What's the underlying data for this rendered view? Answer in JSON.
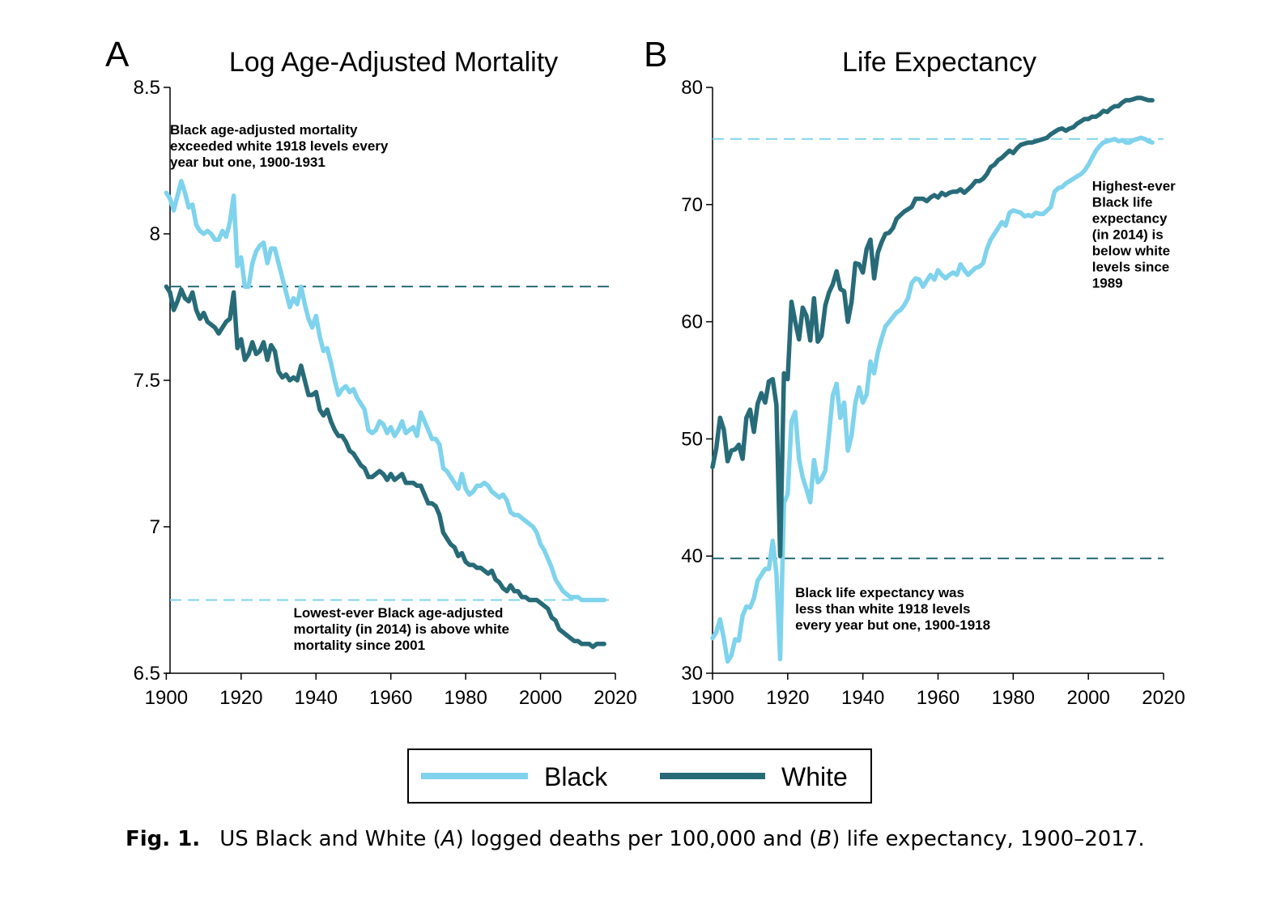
{
  "colors": {
    "black_series": "#7fd3ec",
    "white_series": "#276b78"
  },
  "legend": {
    "black_label": "Black",
    "white_label": "White"
  },
  "caption": {
    "label": "Fig. 1.",
    "text_parts": [
      "US Black and White (",
      "A",
      ") logged deaths per 100,000 and (",
      "B",
      ") life expectancy, 1900–2017."
    ]
  },
  "chart_data": [
    {
      "type": "line",
      "panel_letter": "A",
      "title": "Log Age-Adjusted Mortality",
      "xlim": [
        1900,
        2020
      ],
      "ylim": [
        6.5,
        8.5
      ],
      "xticks": [
        1900,
        1920,
        1940,
        1960,
        1980,
        2000,
        2020
      ],
      "yticks": [
        6.5,
        7,
        7.5,
        8,
        8.5
      ],
      "ytick_labels": [
        "6.5",
        "7",
        "7.5",
        "8",
        "8.5"
      ],
      "grid": false,
      "x": [
        1900,
        1901,
        1902,
        1903,
        1904,
        1905,
        1906,
        1907,
        1908,
        1909,
        1910,
        1911,
        1912,
        1913,
        1914,
        1915,
        1916,
        1917,
        1918,
        1919,
        1920,
        1921,
        1922,
        1923,
        1924,
        1925,
        1926,
        1927,
        1928,
        1929,
        1930,
        1931,
        1932,
        1933,
        1934,
        1935,
        1936,
        1937,
        1938,
        1939,
        1940,
        1941,
        1942,
        1943,
        1944,
        1945,
        1946,
        1947,
        1948,
        1949,
        1950,
        1951,
        1952,
        1953,
        1954,
        1955,
        1956,
        1957,
        1958,
        1959,
        1960,
        1961,
        1962,
        1963,
        1964,
        1965,
        1966,
        1967,
        1968,
        1969,
        1970,
        1971,
        1972,
        1973,
        1974,
        1975,
        1976,
        1977,
        1978,
        1979,
        1980,
        1981,
        1982,
        1983,
        1984,
        1985,
        1986,
        1987,
        1988,
        1989,
        1990,
        1991,
        1992,
        1993,
        1994,
        1995,
        1996,
        1997,
        1998,
        1999,
        2000,
        2001,
        2002,
        2003,
        2004,
        2005,
        2006,
        2007,
        2008,
        2009,
        2010,
        2011,
        2012,
        2013,
        2014,
        2015,
        2016,
        2017
      ],
      "series": [
        {
          "name": "Black",
          "values": [
            8.14,
            8.12,
            8.08,
            8.13,
            8.18,
            8.14,
            8.09,
            8.1,
            8.03,
            8.01,
            8.0,
            8.01,
            8.0,
            7.98,
            7.98,
            8.01,
            7.99,
            8.04,
            8.13,
            7.89,
            7.92,
            7.82,
            7.82,
            7.9,
            7.94,
            7.96,
            7.97,
            7.9,
            7.95,
            7.95,
            7.9,
            7.85,
            7.8,
            7.75,
            7.78,
            7.76,
            7.82,
            7.76,
            7.71,
            7.68,
            7.72,
            7.65,
            7.6,
            7.61,
            7.56,
            7.5,
            7.45,
            7.47,
            7.48,
            7.46,
            7.47,
            7.44,
            7.42,
            7.4,
            7.33,
            7.32,
            7.33,
            7.36,
            7.35,
            7.32,
            7.34,
            7.31,
            7.33,
            7.36,
            7.32,
            7.33,
            7.34,
            7.31,
            7.39,
            7.36,
            7.33,
            7.3,
            7.3,
            7.28,
            7.2,
            7.19,
            7.17,
            7.15,
            7.13,
            7.18,
            7.13,
            7.11,
            7.12,
            7.14,
            7.14,
            7.15,
            7.14,
            7.12,
            7.11,
            7.1,
            7.11,
            7.09,
            7.05,
            7.04,
            7.04,
            7.03,
            7.02,
            7.01,
            7.0,
            6.98,
            6.94,
            6.92,
            6.89,
            6.86,
            6.82,
            6.8,
            6.78,
            6.77,
            6.76,
            6.76,
            6.76,
            6.75,
            6.75,
            6.75,
            6.75,
            6.75,
            6.75,
            6.75
          ]
        },
        {
          "name": "White",
          "values": [
            7.82,
            7.8,
            7.74,
            7.77,
            7.81,
            7.78,
            7.77,
            7.8,
            7.74,
            7.71,
            7.73,
            7.7,
            7.69,
            7.68,
            7.66,
            7.68,
            7.7,
            7.71,
            7.8,
            7.61,
            7.64,
            7.57,
            7.59,
            7.63,
            7.59,
            7.6,
            7.63,
            7.57,
            7.62,
            7.6,
            7.53,
            7.51,
            7.52,
            7.5,
            7.51,
            7.5,
            7.55,
            7.5,
            7.45,
            7.45,
            7.46,
            7.4,
            7.38,
            7.4,
            7.36,
            7.33,
            7.31,
            7.31,
            7.29,
            7.26,
            7.25,
            7.23,
            7.21,
            7.2,
            7.17,
            7.17,
            7.18,
            7.19,
            7.18,
            7.16,
            7.18,
            7.16,
            7.17,
            7.18,
            7.15,
            7.15,
            7.15,
            7.14,
            7.14,
            7.11,
            7.08,
            7.08,
            7.07,
            7.04,
            6.98,
            6.96,
            6.94,
            6.93,
            6.9,
            6.91,
            6.88,
            6.87,
            6.87,
            6.86,
            6.86,
            6.85,
            6.84,
            6.85,
            6.82,
            6.81,
            6.79,
            6.78,
            6.8,
            6.78,
            6.78,
            6.76,
            6.76,
            6.75,
            6.75,
            6.75,
            6.74,
            6.73,
            6.72,
            6.69,
            6.68,
            6.65,
            6.64,
            6.63,
            6.62,
            6.61,
            6.61,
            6.6,
            6.6,
            6.6,
            6.59,
            6.6,
            6.6,
            6.6
          ]
        }
      ],
      "reference_lines": [
        {
          "y": 7.82,
          "style": "dashed",
          "series": "White"
        },
        {
          "y": 6.75,
          "style": "dashed",
          "series": "Black"
        }
      ],
      "annotations": [
        {
          "lines": [
            "Black age-adjusted mortality",
            "exceeded white 1918 levels every",
            "year but one, 1900-1931"
          ],
          "anchor": [
            1901,
            8.34
          ]
        },
        {
          "lines": [
            "Lowest-ever Black age-adjusted",
            "mortality (in 2014) is above white",
            "mortality since 2001"
          ],
          "anchor": [
            1934,
            6.69
          ]
        }
      ]
    },
    {
      "type": "line",
      "panel_letter": "B",
      "title": "Life Expectancy",
      "xlim": [
        1900,
        2020
      ],
      "ylim": [
        30,
        80
      ],
      "xticks": [
        1900,
        1920,
        1940,
        1960,
        1980,
        2000,
        2020
      ],
      "yticks": [
        30,
        40,
        50,
        60,
        70,
        80
      ],
      "ytick_labels": [
        "30",
        "40",
        "50",
        "60",
        "70",
        "80"
      ],
      "grid": false,
      "x": [
        1900,
        1901,
        1902,
        1903,
        1904,
        1905,
        1906,
        1907,
        1908,
        1909,
        1910,
        1911,
        1912,
        1913,
        1914,
        1915,
        1916,
        1917,
        1918,
        1919,
        1920,
        1921,
        1922,
        1923,
        1924,
        1925,
        1926,
        1927,
        1928,
        1929,
        1930,
        1931,
        1932,
        1933,
        1934,
        1935,
        1936,
        1937,
        1938,
        1939,
        1940,
        1941,
        1942,
        1943,
        1944,
        1945,
        1946,
        1947,
        1948,
        1949,
        1950,
        1951,
        1952,
        1953,
        1954,
        1955,
        1956,
        1957,
        1958,
        1959,
        1960,
        1961,
        1962,
        1963,
        1964,
        1965,
        1966,
        1967,
        1968,
        1969,
        1970,
        1971,
        1972,
        1973,
        1974,
        1975,
        1976,
        1977,
        1978,
        1979,
        1980,
        1981,
        1982,
        1983,
        1984,
        1985,
        1986,
        1987,
        1988,
        1989,
        1990,
        1991,
        1992,
        1993,
        1994,
        1995,
        1996,
        1997,
        1998,
        1999,
        2000,
        2001,
        2002,
        2003,
        2004,
        2005,
        2006,
        2007,
        2008,
        2009,
        2010,
        2011,
        2012,
        2013,
        2014,
        2015,
        2016,
        2017
      ],
      "series": [
        {
          "name": "Black",
          "values": [
            33.0,
            33.5,
            34.6,
            33.0,
            31.0,
            31.5,
            32.9,
            32.8,
            34.9,
            35.7,
            35.6,
            36.4,
            37.9,
            38.4,
            38.9,
            38.9,
            41.3,
            38.5,
            31.2,
            44.5,
            45.3,
            51.5,
            52.3,
            48.3,
            46.7,
            45.7,
            44.6,
            48.2,
            46.3,
            46.6,
            47.3,
            50.4,
            53.7,
            54.7,
            51.8,
            53.1,
            49.0,
            50.3,
            53.1,
            54.4,
            53.1,
            53.8,
            56.6,
            55.6,
            57.4,
            58.6,
            59.6,
            60.0,
            60.4,
            60.8,
            61.0,
            61.4,
            62.0,
            63.3,
            63.7,
            63.6,
            63.0,
            63.5,
            64.0,
            63.6,
            64.4,
            64.0,
            63.7,
            64.0,
            64.2,
            64.0,
            64.9,
            64.4,
            64.0,
            64.3,
            64.6,
            64.7,
            65.0,
            66.2,
            67.0,
            67.5,
            68.0,
            68.5,
            68.2,
            69.3,
            69.5,
            69.4,
            69.3,
            69.0,
            69.1,
            69.0,
            69.3,
            69.2,
            69.2,
            69.5,
            69.8,
            71.1,
            71.4,
            71.5,
            71.8,
            72.0,
            72.2,
            72.4,
            72.6,
            72.9,
            73.4,
            74.0,
            74.6,
            75.0,
            75.3,
            75.4,
            75.5,
            75.6,
            75.4,
            75.5,
            75.3,
            75.3,
            75.5,
            75.6,
            75.7,
            75.6,
            75.4,
            75.3
          ]
        },
        {
          "name": "White",
          "values": [
            47.6,
            49.2,
            51.8,
            50.8,
            48.1,
            49.0,
            49.1,
            49.5,
            48.3,
            51.8,
            52.5,
            50.6,
            53.0,
            53.9,
            53.1,
            54.9,
            55.1,
            52.9,
            40.0,
            55.6,
            55.1,
            61.7,
            60.0,
            58.5,
            61.2,
            60.5,
            58.4,
            62.0,
            58.3,
            58.8,
            61.4,
            62.5,
            63.2,
            64.3,
            62.8,
            62.6,
            60.0,
            61.7,
            65.0,
            64.9,
            64.2,
            66.2,
            67.0,
            63.7,
            65.9,
            66.8,
            67.5,
            67.6,
            68.0,
            68.8,
            69.1,
            69.4,
            69.6,
            69.8,
            70.5,
            70.5,
            70.5,
            70.3,
            70.6,
            70.8,
            70.6,
            71.0,
            70.8,
            71.0,
            71.1,
            71.1,
            71.3,
            71.0,
            71.3,
            71.6,
            72.0,
            72.0,
            72.2,
            72.6,
            73.2,
            73.4,
            73.8,
            74.0,
            74.3,
            74.6,
            74.4,
            74.8,
            75.1,
            75.2,
            75.3,
            75.3,
            75.4,
            75.5,
            75.6,
            75.7,
            76.0,
            76.2,
            76.4,
            76.5,
            76.3,
            76.5,
            76.6,
            76.9,
            77.1,
            77.3,
            77.3,
            77.5,
            77.5,
            77.7,
            78.0,
            77.9,
            78.2,
            78.4,
            78.4,
            78.7,
            78.9,
            78.9,
            79.0,
            79.1,
            79.1,
            79.0,
            78.9,
            78.9
          ]
        }
      ],
      "reference_lines": [
        {
          "y": 75.6,
          "style": "dashed",
          "series": "Black"
        },
        {
          "y": 39.8,
          "style": "dashed",
          "series": "White"
        }
      ],
      "annotations": [
        {
          "lines": [
            "Highest-ever",
            "Black life",
            "expectancy",
            "(in 2014) is",
            "below white",
            "levels since",
            "1989"
          ],
          "anchor": [
            2001,
            71.2
          ]
        },
        {
          "lines": [
            "Black life expectancy was",
            "less than white 1918 levels",
            "every year but one, 1900-1918"
          ],
          "anchor": [
            1922,
            36.5
          ]
        }
      ]
    }
  ]
}
